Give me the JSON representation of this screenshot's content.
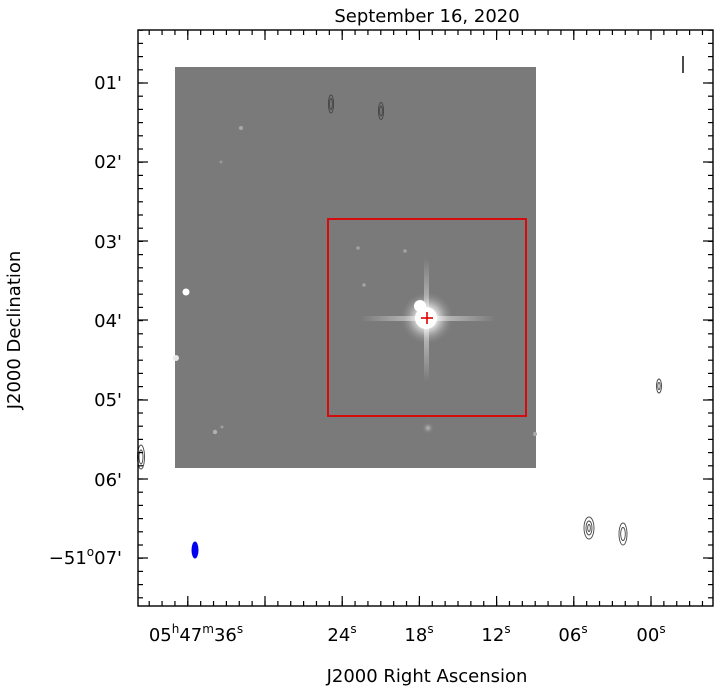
{
  "chart_data": {
    "type": "image",
    "title": "September 16, 2020",
    "xlabel": "J2000 Right Ascension",
    "ylabel": "J2000 Declination",
    "x_ticks": [
      {
        "label": "05h47m36s",
        "parts": [
          "05",
          "h",
          "47",
          "m",
          "36",
          "s"
        ]
      },
      {
        "label": "24s",
        "parts": [
          "24",
          "s"
        ]
      },
      {
        "label": "18s",
        "parts": [
          "18",
          "s"
        ]
      },
      {
        "label": "12s",
        "parts": [
          "12",
          "s"
        ]
      },
      {
        "label": "06s",
        "parts": [
          "06",
          "s"
        ]
      },
      {
        "label": "00s",
        "parts": [
          "00",
          "s"
        ]
      }
    ],
    "y_ticks": [
      {
        "label": "01'",
        "text": "01'"
      },
      {
        "label": "02'",
        "text": "02'"
      },
      {
        "label": "03'",
        "text": "03'"
      },
      {
        "label": "04'",
        "text": "04'"
      },
      {
        "label": "05'",
        "text": "05'"
      },
      {
        "label": "06'",
        "text": "06'"
      },
      {
        "label": "-51°07'",
        "parts": [
          "−51",
          "o",
          "07'"
        ]
      }
    ],
    "colors": {
      "image_background": "#7a7a7a",
      "source": "#ffffff",
      "box": "#e00000",
      "marker": "#e00000",
      "beam": "#0000ee",
      "contour": "#444444"
    },
    "annotations": {
      "box": "red square",
      "marker": "red cross at bright source",
      "beam": "blue ellipse"
    }
  }
}
